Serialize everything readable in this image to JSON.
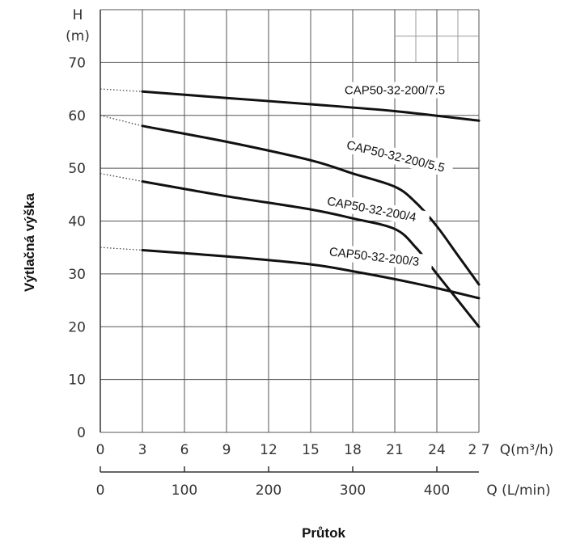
{
  "chart_data": {
    "type": "line",
    "title": "",
    "ylabel": "Výtlačná výška",
    "xlabel": "Průtok",
    "y_unit_top": "H",
    "y_unit_bottom": "(m)",
    "x_unit_m3h": "Q(m³/h)",
    "x_unit_lmin": "Q (L/min)",
    "ylim": [
      0,
      80
    ],
    "xlim": [
      0,
      27
    ],
    "y_ticks": [
      0,
      10,
      20,
      30,
      40,
      50,
      60,
      70
    ],
    "x_ticks_m3h": [
      0,
      3,
      6,
      9,
      12,
      15,
      18,
      21,
      24,
      27
    ],
    "x_tick_labels_m3h": [
      "0",
      "3",
      "6",
      "9",
      "12",
      "15",
      "18",
      "21",
      "24",
      "2 7"
    ],
    "x_ticks_lmin": [
      0,
      100,
      200,
      300,
      400
    ],
    "lmin_per_m3h": 16.6667,
    "grid": true,
    "legend": "none",
    "series": [
      {
        "name": "CAP50-32-200/7.5",
        "shutoff_head": 65,
        "points": [
          [
            3,
            64.5
          ],
          [
            9,
            63.3
          ],
          [
            15,
            62.1
          ],
          [
            21,
            60.8
          ],
          [
            27,
            59
          ]
        ],
        "label_at": [
          21,
          64
        ]
      },
      {
        "name": "CAP50-32-200/5.5",
        "shutoff_head": 60,
        "points": [
          [
            3,
            58
          ],
          [
            9,
            55
          ],
          [
            15,
            51.5
          ],
          [
            18,
            49
          ],
          [
            21,
            46.5
          ],
          [
            22.5,
            43.5
          ],
          [
            24,
            39
          ],
          [
            25.5,
            33.5
          ],
          [
            27,
            28
          ]
        ],
        "label_at": [
          21,
          51.5
        ]
      },
      {
        "name": "CAP50-32-200/4",
        "shutoff_head": 49,
        "points": [
          [
            3,
            47.5
          ],
          [
            9,
            44.7
          ],
          [
            15,
            42.2
          ],
          [
            18,
            40.5
          ],
          [
            21,
            38.5
          ],
          [
            22.5,
            35
          ],
          [
            24,
            30
          ],
          [
            25.5,
            25
          ],
          [
            27,
            20
          ]
        ],
        "label_at": [
          19.3,
          41.5
        ]
      },
      {
        "name": "CAP50-32-200/3",
        "shutoff_head": 35,
        "points": [
          [
            3,
            34.5
          ],
          [
            9,
            33.3
          ],
          [
            15,
            31.8
          ],
          [
            18,
            30.5
          ],
          [
            21,
            29
          ],
          [
            24,
            27.3
          ],
          [
            27,
            25.4
          ]
        ],
        "label_at": [
          19.5,
          32.5
        ]
      }
    ]
  }
}
